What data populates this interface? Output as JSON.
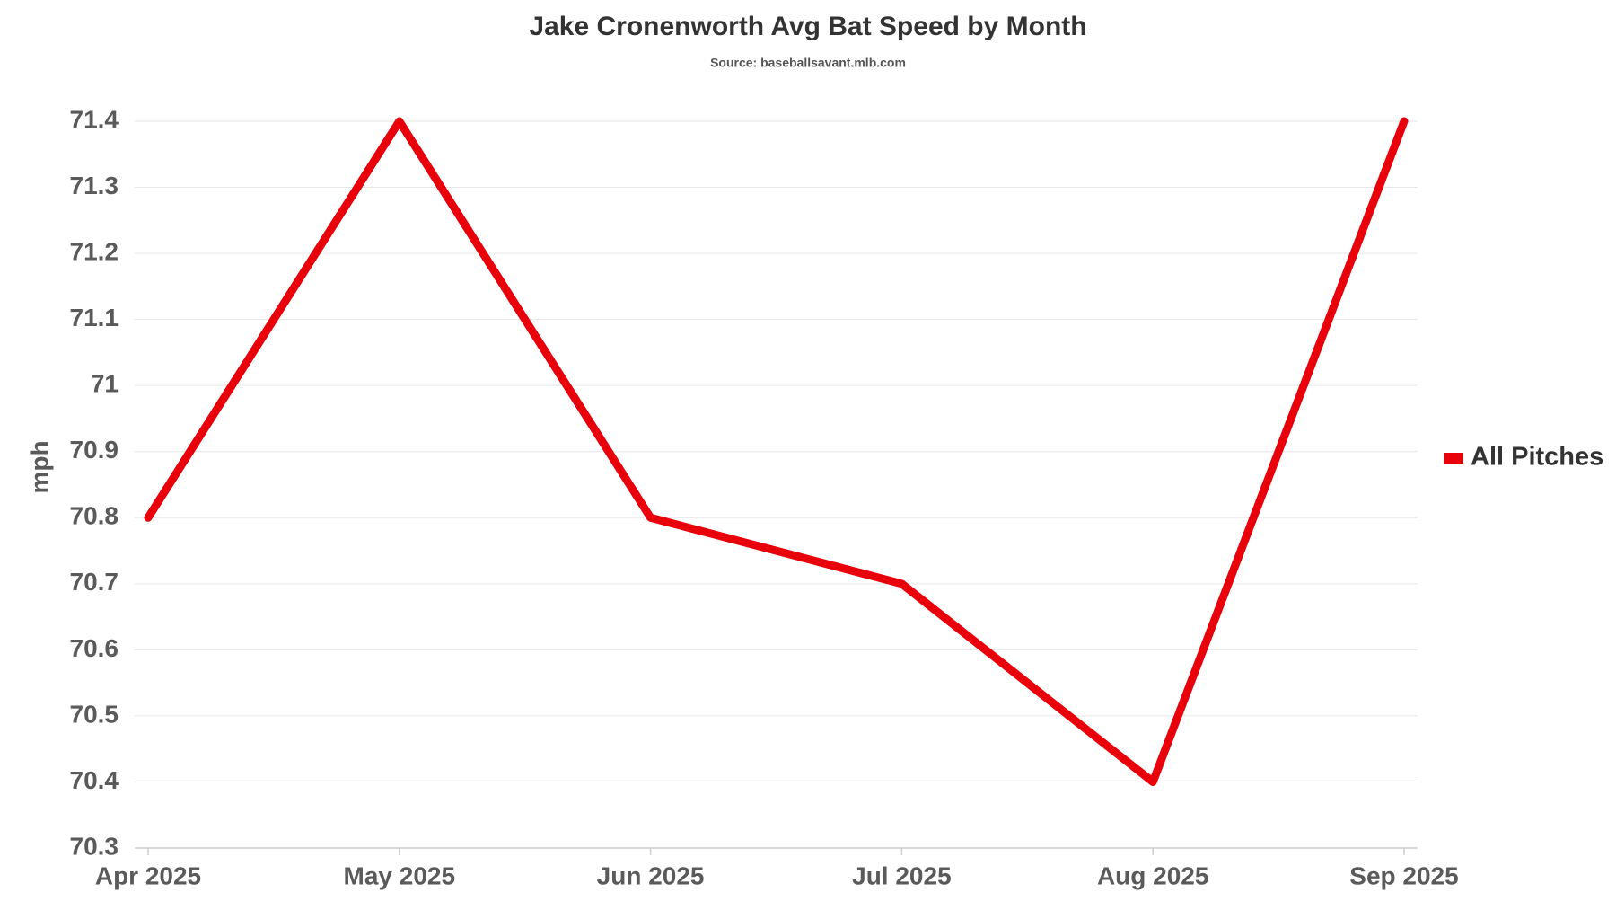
{
  "chart_data": {
    "type": "line",
    "title": "Jake Cronenworth Avg Bat Speed by Month",
    "subtitle": "Source: baseballsavant.mlb.com",
    "y_label": "mph",
    "categories": [
      "Apr 2025",
      "May 2025",
      "Jun 2025",
      "Jul 2025",
      "Aug 2025",
      "Sep 2025"
    ],
    "series": [
      {
        "name": "All Pitches",
        "color": "#e8000b",
        "values": [
          70.8,
          71.4,
          70.8,
          70.7,
          70.4,
          71.4
        ]
      }
    ],
    "ylim": [
      70.3,
      71.4
    ],
    "yticks": [
      70.3,
      70.4,
      70.5,
      70.6,
      70.7,
      70.8,
      70.9,
      71,
      71.1,
      71.2,
      71.3,
      71.4
    ],
    "grid": true,
    "legend": "right"
  }
}
